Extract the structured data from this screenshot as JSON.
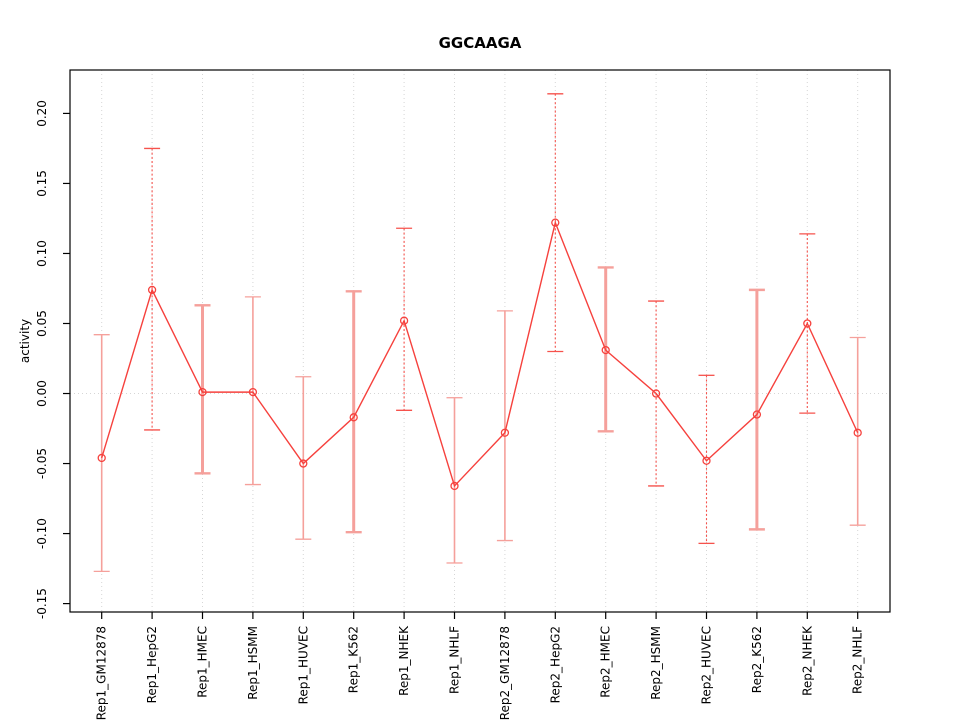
{
  "figure": {
    "title": "GGCAAGA",
    "y_axis_label": "activity"
  },
  "chart_data": {
    "type": "line",
    "title": "GGCAAGA",
    "xlabel": "",
    "ylabel": "activity",
    "categories": [
      "Rep1_GM12878",
      "Rep1_HepG2",
      "Rep1_HMEC",
      "Rep1_HSMM",
      "Rep1_HUVEC",
      "Rep1_K562",
      "Rep1_NHEK",
      "Rep1_NHLF",
      "Rep2_GM12878",
      "Rep2_HepG2",
      "Rep2_HMEC",
      "Rep2_HSMM",
      "Rep2_HUVEC",
      "Rep2_K562",
      "Rep2_NHEK",
      "Rep2_NHLF"
    ],
    "series": [
      {
        "name": "activity",
        "values": [
          -0.046,
          0.074,
          0.001,
          0.001,
          -0.05,
          -0.017,
          0.052,
          -0.066,
          -0.028,
          0.122,
          0.031,
          0.0,
          -0.048,
          -0.015,
          0.05,
          -0.028
        ]
      }
    ],
    "error_bars": {
      "upper": [
        0.042,
        0.175,
        0.063,
        0.069,
        0.012,
        0.073,
        0.118,
        -0.003,
        0.059,
        0.214,
        0.09,
        0.066,
        0.013,
        0.074,
        0.114,
        0.04
      ],
      "lower": [
        -0.127,
        -0.026,
        -0.057,
        -0.065,
        -0.104,
        -0.099,
        -0.012,
        -0.121,
        -0.105,
        0.03,
        -0.027,
        -0.066,
        -0.107,
        -0.097,
        -0.014,
        -0.094
      ],
      "styles": [
        "thin",
        "dotted",
        "thick",
        "thin",
        "thin",
        "thick",
        "dotted",
        "thin",
        "thin",
        "dotted",
        "thick",
        "dotted",
        "dotted",
        "thick",
        "dotted",
        "thin"
      ]
    },
    "ylim": [
      -0.156,
      0.231
    ],
    "yticks": [
      0.2,
      0.15,
      0.1,
      0.05,
      0.0,
      -0.05,
      -0.1,
      -0.15
    ],
    "ytick_labels": [
      "0.20",
      "0.15",
      "0.10",
      "0.05",
      "0.00",
      "-0.05",
      "-0.10",
      "-0.15"
    ],
    "grid": {
      "vertical_dotted_per_category": true,
      "horizontal_dotted_at_zero": true
    },
    "legend": "none",
    "marker": "open-circle",
    "colors": {
      "series": "#f6413d",
      "error_bar_pale": "#f5a09b",
      "error_bar_dotted": "#f6524c",
      "grid": "#d6d6d6",
      "axis": "#000000",
      "background": "#ffffff"
    }
  }
}
